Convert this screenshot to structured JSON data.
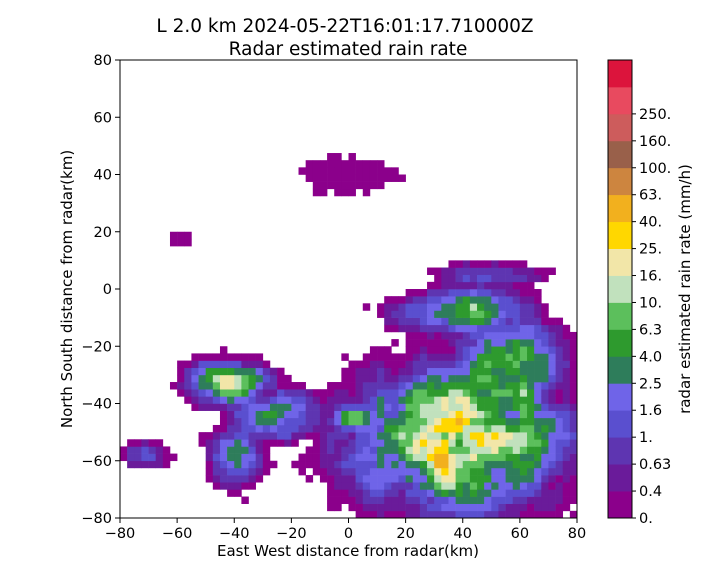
{
  "chart_data": {
    "type": "heatmap",
    "title": "L 2.0 km 2024-05-22T16:01:17.710000Z",
    "subtitle": "Radar estimated rain rate",
    "xlabel": "East West distance from radar(km)",
    "ylabel": "North South distance from radar(km)",
    "xlim": [
      -80,
      80
    ],
    "ylim": [
      -80,
      80
    ],
    "xticks": [
      "−80",
      "−60",
      "−40",
      "−20",
      "0",
      "20",
      "40",
      "60",
      "80"
    ],
    "yticks": [
      "80",
      "60",
      "40",
      "20",
      "0",
      "−20",
      "−40",
      "−60",
      "−80"
    ],
    "grid": false,
    "colorbar": {
      "label": "radar estimated rain rate (mm/h)",
      "tick_labels": [
        "0.",
        "0.4",
        "0.63",
        "1.",
        "1.6",
        "2.5",
        "4.0",
        "6.3",
        "10.",
        "16.",
        "25.",
        "40.",
        "63.",
        "100.",
        "160.",
        "250."
      ],
      "colors": [
        "#8b008b",
        "#6a1b9a",
        "#5e35b1",
        "#5a4fcf",
        "#6f64e8",
        "#2e7d5b",
        "#2e9a2e",
        "#5cbf5c",
        "#c1e1bd",
        "#f2e6a8",
        "#ffd700",
        "#f2b01e",
        "#cd853f",
        "#99604a",
        "#cd5c5c",
        "#e84a5f",
        "#dc143c"
      ]
    },
    "regions": [
      {
        "desc": "heavy rain core SE",
        "cx": 35,
        "cy": -50,
        "rx": 50,
        "ry": 30,
        "levels": [
          7,
          8,
          9,
          10
        ]
      },
      {
        "desc": "western band",
        "cx": -40,
        "cy": -35,
        "rx": 25,
        "ry": 12,
        "levels": [
          6,
          7,
          9,
          10,
          11
        ]
      }
    ]
  }
}
